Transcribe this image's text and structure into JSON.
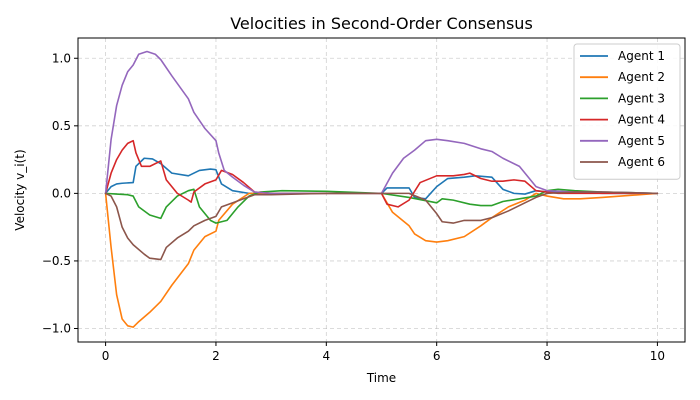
{
  "chart_data": {
    "type": "line",
    "title": "Velocities in Second-Order Consensus",
    "xlabel": "Time",
    "ylabel": "Velocity v_i(t)",
    "xlim": [
      -0.5,
      10.5
    ],
    "ylim": [
      -1.1,
      1.15
    ],
    "xticks": [
      0,
      2,
      4,
      6,
      8,
      10
    ],
    "xtick_labels": [
      "0",
      "2",
      "4",
      "6",
      "8",
      "10"
    ],
    "yticks": [
      -1.0,
      -0.5,
      0.0,
      0.5,
      1.0
    ],
    "ytick_labels": [
      "−1.0",
      "−0.5",
      "0.0",
      "0.5",
      "1.0"
    ],
    "grid": true,
    "legend_position": "top-right",
    "series": [
      {
        "name": "Agent 1",
        "color": "#1f77b4",
        "points": [
          [
            0,
            0
          ],
          [
            0.1,
            0.05
          ],
          [
            0.2,
            0.07
          ],
          [
            0.3,
            0.075
          ],
          [
            0.5,
            0.08
          ],
          [
            0.55,
            0.2
          ],
          [
            0.7,
            0.26
          ],
          [
            0.85,
            0.255
          ],
          [
            1.0,
            0.22
          ],
          [
            1.2,
            0.15
          ],
          [
            1.5,
            0.13
          ],
          [
            1.7,
            0.17
          ],
          [
            1.9,
            0.18
          ],
          [
            2.0,
            0.175
          ],
          [
            2.1,
            0.07
          ],
          [
            2.3,
            0.02
          ],
          [
            2.6,
            0.0
          ],
          [
            3,
            0
          ],
          [
            4,
            0
          ],
          [
            5,
            0
          ],
          [
            5.1,
            0.04
          ],
          [
            5.5,
            0.04
          ],
          [
            5.6,
            -0.03
          ],
          [
            5.8,
            -0.04
          ],
          [
            6.0,
            0.05
          ],
          [
            6.2,
            0.11
          ],
          [
            6.5,
            0.12
          ],
          [
            6.7,
            0.13
          ],
          [
            7.0,
            0.12
          ],
          [
            7.2,
            0.03
          ],
          [
            7.4,
            0.0
          ],
          [
            7.6,
            -0.005
          ],
          [
            7.8,
            0.02
          ],
          [
            8.0,
            0.01
          ],
          [
            8.5,
            0.01
          ],
          [
            9,
            0
          ],
          [
            10,
            0
          ]
        ]
      },
      {
        "name": "Agent 2",
        "color": "#ff7f0e",
        "points": [
          [
            0,
            0
          ],
          [
            0.1,
            -0.4
          ],
          [
            0.2,
            -0.75
          ],
          [
            0.3,
            -0.93
          ],
          [
            0.4,
            -0.98
          ],
          [
            0.5,
            -0.99
          ],
          [
            0.6,
            -0.95
          ],
          [
            0.8,
            -0.88
          ],
          [
            1.0,
            -0.8
          ],
          [
            1.2,
            -0.68
          ],
          [
            1.5,
            -0.52
          ],
          [
            1.6,
            -0.42
          ],
          [
            1.8,
            -0.32
          ],
          [
            2.0,
            -0.28
          ],
          [
            2.05,
            -0.2
          ],
          [
            2.3,
            -0.08
          ],
          [
            2.6,
            0.0
          ],
          [
            3,
            0
          ],
          [
            4,
            0
          ],
          [
            5,
            0
          ],
          [
            5.2,
            -0.14
          ],
          [
            5.5,
            -0.24
          ],
          [
            5.6,
            -0.3
          ],
          [
            5.8,
            -0.35
          ],
          [
            6.0,
            -0.36
          ],
          [
            6.2,
            -0.35
          ],
          [
            6.5,
            -0.32
          ],
          [
            6.8,
            -0.24
          ],
          [
            7.0,
            -0.18
          ],
          [
            7.3,
            -0.1
          ],
          [
            7.6,
            -0.05
          ],
          [
            7.8,
            0.0
          ],
          [
            8.0,
            -0.02
          ],
          [
            8.3,
            -0.04
          ],
          [
            8.6,
            -0.04
          ],
          [
            9,
            -0.03
          ],
          [
            10,
            0
          ]
        ]
      },
      {
        "name": "Agent 3",
        "color": "#2ca02c",
        "points": [
          [
            0,
            0
          ],
          [
            0.2,
            -0.005
          ],
          [
            0.4,
            -0.01
          ],
          [
            0.5,
            -0.02
          ],
          [
            0.6,
            -0.1
          ],
          [
            0.8,
            -0.16
          ],
          [
            1.0,
            -0.185
          ],
          [
            1.1,
            -0.1
          ],
          [
            1.3,
            -0.02
          ],
          [
            1.5,
            0.02
          ],
          [
            1.6,
            0.03
          ],
          [
            1.7,
            -0.1
          ],
          [
            1.9,
            -0.2
          ],
          [
            2.0,
            -0.22
          ],
          [
            2.2,
            -0.2
          ],
          [
            2.4,
            -0.1
          ],
          [
            2.6,
            -0.02
          ],
          [
            2.8,
            0.01
          ],
          [
            3.2,
            0.02
          ],
          [
            4,
            0.015
          ],
          [
            5,
            0
          ],
          [
            5.5,
            -0.03
          ],
          [
            6.0,
            -0.07
          ],
          [
            6.1,
            -0.04
          ],
          [
            6.3,
            -0.05
          ],
          [
            6.6,
            -0.08
          ],
          [
            6.8,
            -0.09
          ],
          [
            7.0,
            -0.09
          ],
          [
            7.2,
            -0.06
          ],
          [
            7.5,
            -0.04
          ],
          [
            7.8,
            -0.02
          ],
          [
            8.0,
            0.02
          ],
          [
            8.2,
            0.03
          ],
          [
            8.5,
            0.02
          ],
          [
            9,
            0.01
          ],
          [
            10,
            0
          ]
        ]
      },
      {
        "name": "Agent 4",
        "color": "#d62728",
        "points": [
          [
            0,
            0
          ],
          [
            0.1,
            0.15
          ],
          [
            0.2,
            0.25
          ],
          [
            0.3,
            0.32
          ],
          [
            0.4,
            0.37
          ],
          [
            0.5,
            0.39
          ],
          [
            0.55,
            0.3
          ],
          [
            0.65,
            0.2
          ],
          [
            0.8,
            0.2
          ],
          [
            1.0,
            0.24
          ],
          [
            1.1,
            0.1
          ],
          [
            1.3,
            0.0
          ],
          [
            1.5,
            -0.05
          ],
          [
            1.55,
            -0.065
          ],
          [
            1.6,
            0.01
          ],
          [
            1.8,
            0.07
          ],
          [
            2.0,
            0.1
          ],
          [
            2.1,
            0.17
          ],
          [
            2.3,
            0.14
          ],
          [
            2.5,
            0.08
          ],
          [
            2.7,
            0.01
          ],
          [
            3,
            0.0
          ],
          [
            4,
            0
          ],
          [
            5,
            0
          ],
          [
            5.1,
            -0.08
          ],
          [
            5.3,
            -0.1
          ],
          [
            5.5,
            -0.05
          ],
          [
            5.7,
            0.08
          ],
          [
            6.0,
            0.13
          ],
          [
            6.3,
            0.13
          ],
          [
            6.5,
            0.14
          ],
          [
            6.6,
            0.15
          ],
          [
            6.8,
            0.11
          ],
          [
            7.0,
            0.09
          ],
          [
            7.2,
            0.09
          ],
          [
            7.4,
            0.1
          ],
          [
            7.6,
            0.09
          ],
          [
            7.8,
            0.02
          ],
          [
            8.2,
            0.0
          ],
          [
            9,
            0
          ],
          [
            10,
            0
          ]
        ]
      },
      {
        "name": "Agent 5",
        "color": "#9467bd",
        "points": [
          [
            0,
            0
          ],
          [
            0.1,
            0.4
          ],
          [
            0.2,
            0.65
          ],
          [
            0.3,
            0.8
          ],
          [
            0.4,
            0.9
          ],
          [
            0.5,
            0.95
          ],
          [
            0.6,
            1.03
          ],
          [
            0.75,
            1.05
          ],
          [
            0.9,
            1.03
          ],
          [
            1.0,
            0.99
          ],
          [
            1.2,
            0.87
          ],
          [
            1.5,
            0.7
          ],
          [
            1.6,
            0.6
          ],
          [
            1.8,
            0.48
          ],
          [
            2.0,
            0.39
          ],
          [
            2.05,
            0.3
          ],
          [
            2.15,
            0.17
          ],
          [
            2.3,
            0.12
          ],
          [
            2.5,
            0.06
          ],
          [
            2.7,
            0.01
          ],
          [
            3,
            0.0
          ],
          [
            4,
            0
          ],
          [
            5,
            0
          ],
          [
            5.2,
            0.15
          ],
          [
            5.4,
            0.26
          ],
          [
            5.6,
            0.32
          ],
          [
            5.8,
            0.39
          ],
          [
            6.0,
            0.4
          ],
          [
            6.2,
            0.39
          ],
          [
            6.5,
            0.37
          ],
          [
            6.8,
            0.33
          ],
          [
            7.0,
            0.31
          ],
          [
            7.2,
            0.26
          ],
          [
            7.5,
            0.2
          ],
          [
            7.6,
            0.15
          ],
          [
            7.8,
            0.05
          ],
          [
            8.0,
            0.02
          ],
          [
            8.5,
            0.01
          ],
          [
            9,
            0.01
          ],
          [
            10,
            0
          ]
        ]
      },
      {
        "name": "Agent 6",
        "color": "#8c564b",
        "points": [
          [
            0,
            0
          ],
          [
            0.1,
            -0.02
          ],
          [
            0.2,
            -0.1
          ],
          [
            0.3,
            -0.25
          ],
          [
            0.4,
            -0.33
          ],
          [
            0.5,
            -0.38
          ],
          [
            0.7,
            -0.45
          ],
          [
            0.8,
            -0.48
          ],
          [
            1.0,
            -0.49
          ],
          [
            1.1,
            -0.4
          ],
          [
            1.3,
            -0.33
          ],
          [
            1.5,
            -0.28
          ],
          [
            1.6,
            -0.24
          ],
          [
            1.8,
            -0.2
          ],
          [
            2.0,
            -0.17
          ],
          [
            2.1,
            -0.1
          ],
          [
            2.3,
            -0.07
          ],
          [
            2.5,
            -0.04
          ],
          [
            2.7,
            -0.01
          ],
          [
            3,
            -0.01
          ],
          [
            4,
            0
          ],
          [
            5,
            0
          ],
          [
            5.5,
            0.0
          ],
          [
            5.8,
            -0.05
          ],
          [
            6.0,
            -0.15
          ],
          [
            6.1,
            -0.21
          ],
          [
            6.3,
            -0.22
          ],
          [
            6.5,
            -0.2
          ],
          [
            6.8,
            -0.2
          ],
          [
            7.0,
            -0.18
          ],
          [
            7.3,
            -0.13
          ],
          [
            7.6,
            -0.07
          ],
          [
            7.8,
            -0.03
          ],
          [
            8.0,
            0.0
          ],
          [
            8.5,
            0.01
          ],
          [
            9,
            0.01
          ],
          [
            10,
            0
          ]
        ]
      }
    ]
  }
}
